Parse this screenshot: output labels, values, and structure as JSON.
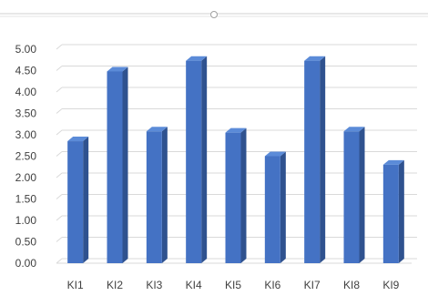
{
  "chart_data": {
    "type": "bar",
    "categories": [
      "KI1",
      "KI2",
      "KI3",
      "KI4",
      "KI5",
      "KI6",
      "KI7",
      "KI8",
      "KI9"
    ],
    "values": [
      2.85,
      4.48,
      3.08,
      4.73,
      3.05,
      2.5,
      4.73,
      3.08,
      2.3
    ],
    "title": "",
    "xlabel": "",
    "ylabel": "",
    "ylim": [
      0,
      5
    ],
    "yticks": [
      "0.00",
      "0.50",
      "1.00",
      "1.50",
      "2.00",
      "2.50",
      "3.00",
      "3.50",
      "4.00",
      "4.50",
      "5.00"
    ],
    "grid": true,
    "legend": "none",
    "bar_front_color": "#4472C4",
    "bar_side_color": "#2F528F",
    "bar_top_color": "#5B8BD8",
    "grid_color": "#D9D9D9",
    "tick_label_color": "#404040"
  }
}
